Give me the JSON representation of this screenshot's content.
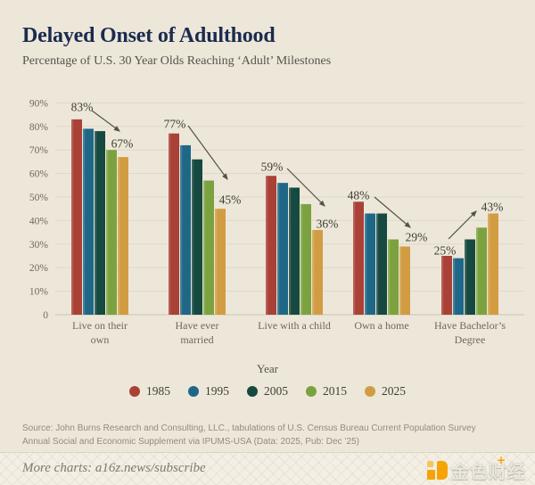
{
  "header": {
    "title": "Delayed Onset of Adulthood",
    "subtitle": "Percentage of U.S. 30 Year Olds Reaching ‘Adult’ Milestones"
  },
  "chart_data": {
    "type": "bar",
    "title": "Delayed Onset of Adulthood",
    "subtitle": "Percentage of U.S. 30 Year Olds Reaching ‘Adult’ Milestones",
    "categories": [
      "Live on their own",
      "Have ever married",
      "Live with a child",
      "Own a home",
      "Have Bachelor’s Degree"
    ],
    "category_labels_wrapped": [
      [
        "Live on their",
        "own"
      ],
      [
        "Have ever",
        "married"
      ],
      [
        "Live with a child"
      ],
      [
        "Own a home"
      ],
      [
        "Have Bachelor’s",
        "Degree"
      ]
    ],
    "series": [
      {
        "name": "1985",
        "color": "#A94137",
        "values": [
          83,
          77,
          59,
          48,
          25
        ]
      },
      {
        "name": "1995",
        "color": "#1F6787",
        "values": [
          79,
          72,
          56,
          43,
          24
        ]
      },
      {
        "name": "2005",
        "color": "#16493F",
        "values": [
          78,
          66,
          54,
          43,
          32
        ]
      },
      {
        "name": "2015",
        "color": "#7BA23F",
        "values": [
          70,
          57,
          47,
          32,
          37
        ]
      },
      {
        "name": "2025",
        "color": "#D29C42",
        "values": [
          67,
          45,
          36,
          29,
          43
        ]
      }
    ],
    "xlabel": "Year",
    "ylabel": "",
    "ylim": [
      0,
      90
    ],
    "ytick_step": 10,
    "ytick_suffix": "%",
    "ytick_zero_label": "0",
    "grid": true,
    "legend_position": "bottom",
    "annotations": [
      {
        "category": "Live on their own",
        "from_label": "83%",
        "to_label": "67%",
        "trend": "down"
      },
      {
        "category": "Have ever married",
        "from_label": "77%",
        "to_label": "45%",
        "trend": "down"
      },
      {
        "category": "Live with a child",
        "from_label": "59%",
        "to_label": "36%",
        "trend": "down"
      },
      {
        "category": "Own a home",
        "from_label": "48%",
        "to_label": "29%",
        "trend": "down"
      },
      {
        "category": "Have Bachelor’s Degree",
        "from_label": "25%",
        "to_label": "43%",
        "trend": "up"
      }
    ]
  },
  "footer": {
    "source": "Source: John Burns Research and Consulting, LLC., tabulations of U.S. Census Bureau Current Population Survey Annual Social and Economic Supplement via IPUMS-USA (Data: 2025, Pub: Dec ’25)",
    "more_charts": "More charts: a16z.news/subscribe",
    "watermark": "金色财经",
    "watermark_plus": "+"
  },
  "colors": {
    "background": "#EDE7DA",
    "title": "#1B2B4E",
    "subtitle": "#56534B",
    "gridline": "#DFD8C8",
    "axis_line": "#CCC4B0",
    "tick_label": "#6E695D",
    "value_label": "#3F3C34",
    "arrow": "#55524A",
    "source_text": "#928C7E",
    "footer_text": "#807A6D",
    "watermark_orange": "#F5A306"
  }
}
